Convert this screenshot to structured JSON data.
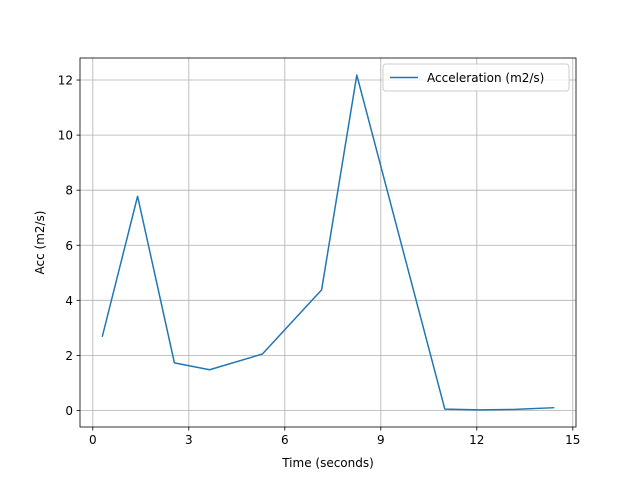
{
  "chart_data": {
    "type": "line",
    "title": "",
    "xlabel": "Time (seconds)",
    "ylabel": "Acc (m2/s)",
    "xlim": [
      -0.4,
      15.1
    ],
    "ylim": [
      -0.6,
      12.8
    ],
    "xticks": [
      0,
      3,
      6,
      9,
      12,
      15
    ],
    "yticks": [
      0,
      2,
      4,
      6,
      8,
      10,
      12
    ],
    "grid": true,
    "legend_position": "top-right",
    "series": [
      {
        "name": "Acceleration (m2/s)",
        "color": "#1f77b4",
        "x": [
          0.3,
          1.4,
          2.55,
          3.65,
          5.3,
          7.15,
          8.25,
          11.0,
          12.1,
          13.2,
          14.4
        ],
        "y": [
          2.7,
          7.78,
          1.73,
          1.48,
          2.05,
          4.38,
          12.18,
          0.05,
          0.02,
          0.04,
          0.1
        ]
      }
    ]
  }
}
